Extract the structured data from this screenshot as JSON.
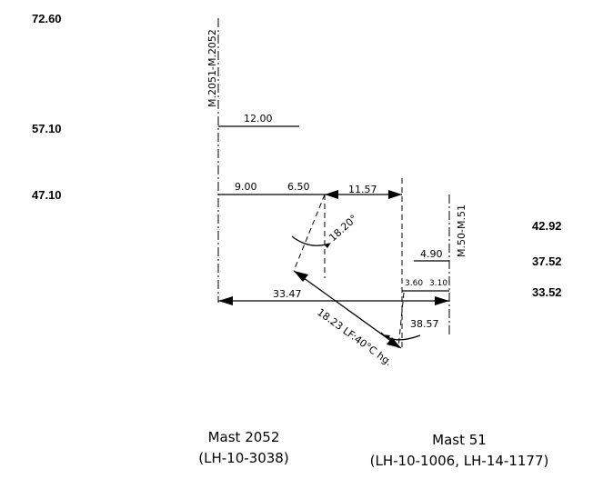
{
  "levels": {
    "top": "72.60",
    "upper": "57.10",
    "middle": "47.10"
  },
  "right_levels": {
    "a": "42.92",
    "b": "37.52",
    "c": "33.52"
  },
  "mast_ids": {
    "left": "M.2051-M.2052",
    "right": "M.50-M.51"
  },
  "dimensions": {
    "upper_arm": "12.00",
    "middle_arm_left": "9.00",
    "middle_arm_mid": "6.50",
    "gap": "11.57",
    "right_arm": "4.90",
    "right_low_a": "3.60",
    "right_low_b": "3.10",
    "span": "33.47",
    "angle_left": "18.20°",
    "angle_right": "38.57",
    "conductor": "18.23 LF:40°C hg."
  },
  "captions": {
    "left_title": "Mast 2052",
    "left_ref": "(LH-10-3038)",
    "right_title": "Mast 51",
    "right_ref": "(LH-10-1006, LH-14-1177)"
  }
}
